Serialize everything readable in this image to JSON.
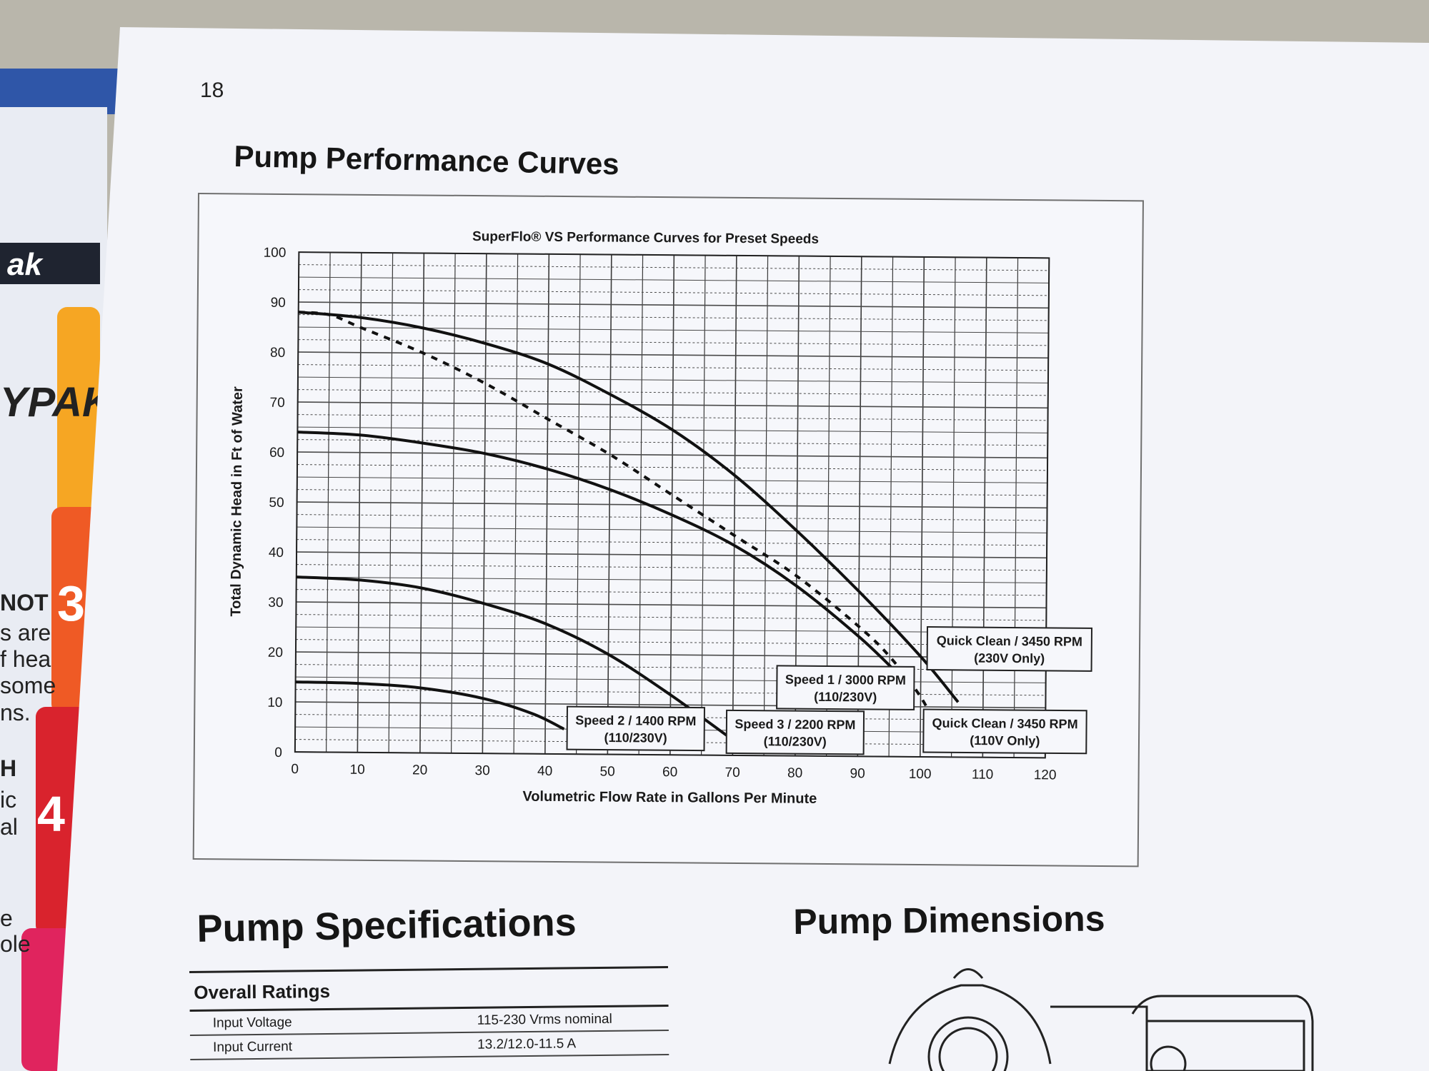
{
  "page": {
    "page_number": "18",
    "section_title": "Pump Performance Curves",
    "specs_title": "Pump Specifications",
    "dimensions_title": "Pump Dimensions"
  },
  "background": {
    "brand_fragment": "ak",
    "left_fragments": [
      "YPAK",
      "NOT",
      "s are",
      "f hea",
      "some",
      "ns.",
      "H",
      "ic",
      "al",
      "e",
      "ole"
    ],
    "tab_numbers": [
      "3",
      "4"
    ]
  },
  "chart_data": {
    "type": "line",
    "title": "SuperFlo® VS Performance Curves for Preset Speeds",
    "xlabel": "Volumetric Flow Rate in Gallons Per Minute",
    "ylabel": "Total Dynamic Head in Ft of Water",
    "xlim": [
      0,
      120
    ],
    "ylim": [
      0,
      100
    ],
    "xticks": [
      0,
      10,
      20,
      30,
      40,
      50,
      60,
      70,
      80,
      90,
      100,
      110,
      120
    ],
    "yticks": [
      0,
      10,
      20,
      30,
      40,
      50,
      60,
      70,
      80,
      90,
      100
    ],
    "grid": true,
    "series": [
      {
        "name": "Quick Clean / 3450 RPM (230V Only)",
        "label_lines": [
          "Quick Clean / 3450 RPM",
          "(230V Only)"
        ],
        "style": "solid",
        "x": [
          0,
          10,
          20,
          30,
          40,
          50,
          60,
          70,
          80,
          90,
          100,
          106
        ],
        "y": [
          88,
          87,
          85,
          82,
          78,
          72,
          65,
          56,
          45,
          33,
          20,
          11
        ]
      },
      {
        "name": "Quick Clean / 3450 RPM (110V Only)",
        "label_lines": [
          "Quick Clean / 3450 RPM",
          "(110V Only)"
        ],
        "style": "dashed",
        "x": [
          0,
          5,
          10,
          20,
          30,
          40,
          50,
          60,
          70,
          80,
          90,
          95,
          100,
          103
        ],
        "y": [
          88,
          87.5,
          85,
          80,
          74,
          67,
          60,
          52,
          44,
          36,
          26,
          20,
          12,
          5
        ]
      },
      {
        "name": "Speed 1 / 3000 RPM (110/230V)",
        "label_lines": [
          "Speed 1 / 3000 RPM",
          "(110/230V)"
        ],
        "style": "solid",
        "x": [
          0,
          10,
          20,
          30,
          40,
          50,
          60,
          70,
          80,
          90,
          96
        ],
        "y": [
          64,
          63.5,
          62,
          60,
          57,
          53,
          48,
          42,
          34,
          24,
          17
        ]
      },
      {
        "name": "Speed 3 / 2200 RPM (110/230V)",
        "label_lines": [
          "Speed 3 / 2200 RPM",
          "(110/230V)"
        ],
        "style": "solid",
        "x": [
          0,
          10,
          20,
          30,
          40,
          50,
          60,
          69
        ],
        "y": [
          35,
          34.5,
          33,
          30,
          26,
          20,
          12,
          4
        ]
      },
      {
        "name": "Speed 2 / 1400 RPM (110/230V)",
        "label_lines": [
          "Speed 2 / 1400 RPM",
          "(110/230V)"
        ],
        "style": "solid",
        "x": [
          0,
          10,
          20,
          30,
          38,
          43
        ],
        "y": [
          14,
          13.8,
          13,
          11,
          8,
          5
        ]
      }
    ]
  },
  "specs": {
    "heading": "Overall Ratings",
    "rows": [
      {
        "label": "Input Voltage",
        "value": "115-230 Vrms nominal"
      },
      {
        "label": "Input Current",
        "value": "13.2/12.0-11.5 A"
      }
    ]
  }
}
